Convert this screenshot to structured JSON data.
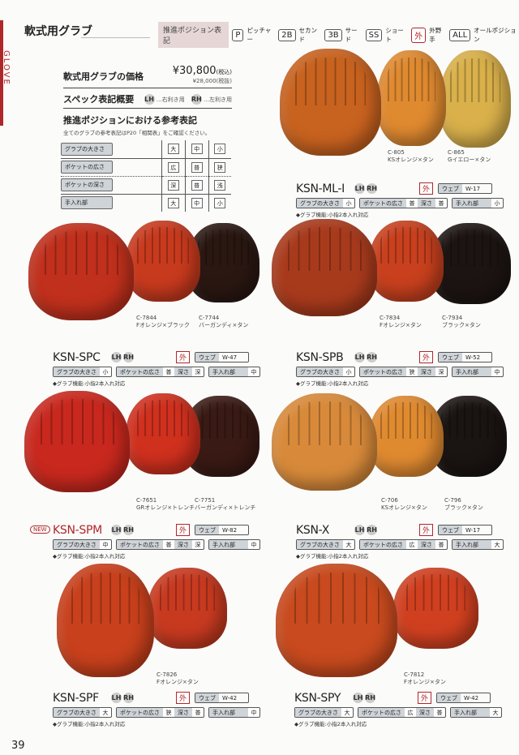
{
  "header": {
    "section_label": "GLOVE",
    "title": "軟式用グラブ",
    "legend_head": "推進ポジション表記",
    "legend": [
      {
        "badge": "P",
        "label": "ピッチャー"
      },
      {
        "badge": "2B",
        "label": "セカンド"
      },
      {
        "badge": "3B",
        "label": "サード"
      },
      {
        "badge": "SS",
        "label": "ショート"
      },
      {
        "badge": "外",
        "label": "外野手"
      },
      {
        "badge": "ALL",
        "label": "オールポジション"
      }
    ]
  },
  "intro": {
    "price_heading": "軟式用グラブの価格",
    "price_incl": "¥30,800",
    "price_incl_note": "(税込)",
    "price_excl": "¥28,000(税抜)",
    "spec_heading": "スペック表記概要",
    "lh": "LH",
    "lh_note": "…右利き用",
    "rh": "RH",
    "rh_note": "…左利き用",
    "ref_heading": "推進ポジションにおける参考表記",
    "ref_note": "全てのグラブの参考表記はP20「相関表」をご確認ください。",
    "table": [
      [
        "グラブの大きさ",
        "大",
        "中",
        "小"
      ],
      [
        "ポケットの広さ",
        "広",
        "普",
        "狭"
      ],
      [
        "ポケットの深さ",
        "深",
        "普",
        "浅"
      ],
      [
        "手入れ部",
        "大",
        "中",
        "小"
      ]
    ]
  },
  "labels": {
    "size": "グラブの大きさ",
    "pocket": "ポケットの広さ",
    "depth": "深さ",
    "care": "手入れ部",
    "web": "ウェブ",
    "lh": "LH",
    "rh": "RH",
    "new": "NEW",
    "note": "◆グラブ機能:小指2本入れ対応"
  },
  "products": [
    {
      "name": "KSN-ML-I",
      "position": "外",
      "web": "W-17",
      "size": "小",
      "pocket": "普",
      "depth": "普",
      "care": "小",
      "is_new": false,
      "colors": [
        {
          "code": "C-805",
          "name": "KSオレンジ×タン"
        },
        {
          "code": "C-865",
          "name": "Gイエロー×タン"
        }
      ],
      "glove_colors": [
        "#c8621f",
        "#e08a30",
        "#d9b04a"
      ]
    },
    {
      "name": "KSN-SPC",
      "position": "外",
      "web": "W-47",
      "size": "小",
      "pocket": "普",
      "depth": "深",
      "care": "中",
      "is_new": false,
      "colors": [
        {
          "code": "C-7844",
          "name": "Fオレンジ×ブラック"
        },
        {
          "code": "C-7744",
          "name": "バーガンディ×タン"
        }
      ],
      "glove_colors": [
        "#c0301c",
        "#c83a1e",
        "#2a1712"
      ]
    },
    {
      "name": "KSN-SPB",
      "position": "外",
      "web": "W-52",
      "size": "小",
      "pocket": "狭",
      "depth": "深",
      "care": "中",
      "is_new": false,
      "colors": [
        {
          "code": "C-7834",
          "name": "Fオレンジ×タン"
        },
        {
          "code": "C-7934",
          "name": "ブラック×タン"
        }
      ],
      "glove_colors": [
        "#a83a1c",
        "#c8401e",
        "#1c1412"
      ]
    },
    {
      "name": "KSN-SPM",
      "position": "外",
      "web": "W-82",
      "size": "中",
      "pocket": "普",
      "depth": "深",
      "care": "中",
      "is_new": true,
      "colors": [
        {
          "code": "C-7651",
          "name": "GRオレンジ×トレンチ"
        },
        {
          "code": "C-7751",
          "name": "バーガンディ×トレンチ"
        }
      ],
      "glove_colors": [
        "#c8281e",
        "#d0301e",
        "#3a1a14"
      ]
    },
    {
      "name": "KSN-X",
      "position": "外",
      "web": "W-17",
      "size": "大",
      "pocket": "広",
      "depth": "普",
      "care": "大",
      "is_new": false,
      "colors": [
        {
          "code": "C-706",
          "name": "KSオレンジ×タン"
        },
        {
          "code": "C-796",
          "name": "ブラック×タン"
        }
      ],
      "glove_colors": [
        "#d88a3a",
        "#e08a30",
        "#1a1412"
      ]
    },
    {
      "name": "KSN-SPF",
      "position": "外",
      "web": "W-42",
      "size": "大",
      "pocket": "狭",
      "depth": "普",
      "care": "中",
      "is_new": false,
      "colors": [
        {
          "code": "C-7826",
          "name": "Fオレンジ×タン"
        }
      ],
      "glove_colors": [
        "#c8401c",
        "#c83a20"
      ]
    },
    {
      "name": "KSN-SPY",
      "position": "外",
      "web": "W-42",
      "size": "大",
      "pocket": "広",
      "depth": "普",
      "care": "大",
      "is_new": false,
      "colors": [
        {
          "code": "C-7812",
          "name": "Fオレンジ×タン"
        }
      ],
      "glove_colors": [
        "#c84a1e",
        "#d04020"
      ]
    }
  ],
  "footer": {
    "page_number": "39"
  }
}
